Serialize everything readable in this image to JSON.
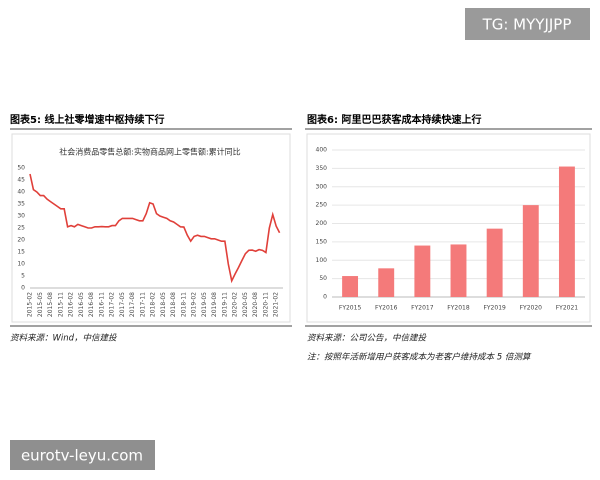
{
  "watermarks": [
    "TG: MYYJJPP",
    "eurotv-leyu.com"
  ],
  "chart_data": [
    {
      "type": "line",
      "title": "图表5:  线上社零增速中枢持续下行",
      "subtitle": "社会消费品零售总额:实物商品网上零售额:累计同比",
      "source": "资料来源：Wind，中信建投",
      "categories": [
        "2015-02",
        null,
        null,
        "2015-05",
        null,
        null,
        "2015-08",
        null,
        null,
        "2015-11",
        null,
        null,
        "2016-02",
        null,
        null,
        "2016-05",
        null,
        null,
        "2016-08",
        null,
        null,
        "2016-11",
        null,
        null,
        "2017-02",
        null,
        null,
        "2017-05",
        null,
        null,
        "2017-08",
        null,
        null,
        "2017-11",
        null,
        null,
        "2018-02",
        null,
        null,
        "2018-05",
        null,
        null,
        "2018-08",
        null,
        null,
        "2018-11",
        null,
        null,
        "2019-02",
        null,
        null,
        "2019-05",
        null,
        null,
        "2019-08",
        null,
        null,
        "2019-11",
        null,
        null,
        "2020-02",
        null,
        null,
        "2020-05",
        null,
        null,
        "2020-08",
        null,
        null,
        "2020-11",
        null,
        null,
        "2021-02",
        null,
        null
      ],
      "values": [
        47.5,
        41,
        40,
        38.5,
        38.5,
        37,
        36,
        35,
        34,
        33,
        33,
        25.5,
        26,
        25.5,
        26.5,
        26,
        25.5,
        25,
        25,
        25.5,
        25.5,
        25.6,
        25.5,
        25.5,
        26,
        26,
        28,
        29,
        29,
        29,
        29,
        28.5,
        28,
        28,
        31,
        35.5,
        35,
        31,
        30,
        29.5,
        29,
        28,
        27.5,
        26.5,
        25.5,
        25.4,
        22,
        19.5,
        21.5,
        22,
        21.5,
        21.5,
        21,
        20.5,
        20.5,
        20,
        19.5,
        19.5,
        10,
        3,
        5.9,
        8.6,
        11.5,
        14.3,
        15.7,
        15.8,
        15.3,
        16,
        15.7,
        14.8,
        25,
        30.6,
        25.8,
        23,
        null
      ],
      "color": "#e0403a",
      "ylim": [
        0,
        50
      ],
      "yticks": [
        0,
        5,
        10,
        15,
        20,
        25,
        30,
        35,
        40,
        45,
        50
      ]
    },
    {
      "type": "bar",
      "title": "图表6:  阿里巴巴获客成本持续快速上行",
      "source": "资料来源：公司公告，中信建投",
      "note": "注：按照年活新增用户获客成本为老客户维持成本 5 倍测算",
      "categories": [
        "FY2015",
        "FY2016",
        "FY2017",
        "FY2018",
        "FY2019",
        "FY2020",
        "FY2021"
      ],
      "values": [
        57,
        78,
        140,
        143,
        186,
        250,
        355
      ],
      "color": "#f47a7a",
      "ylim": [
        0,
        400
      ],
      "yticks": [
        0,
        50,
        100,
        150,
        200,
        250,
        300,
        350,
        400
      ]
    }
  ]
}
